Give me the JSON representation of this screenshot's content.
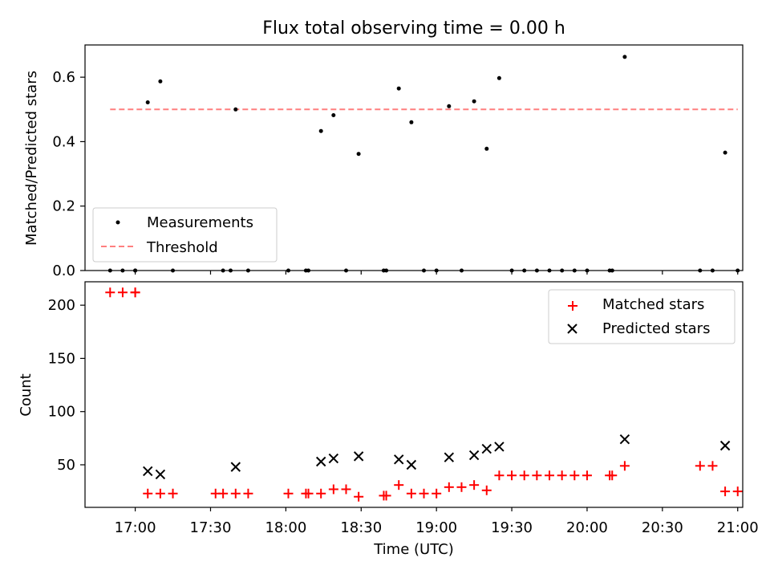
{
  "chart_data": [
    {
      "type": "scatter",
      "title": "Flux total observing time = 0.00 h",
      "ylabel": "Matched/Predicted stars",
      "xlabel": "",
      "xlim": [
        "16:40",
        "21:02"
      ],
      "ylim": [
        0,
        0.7
      ],
      "yticks": [
        0.0,
        0.2,
        0.4,
        0.6
      ],
      "ytick_labels": [
        "0.0",
        "0.2",
        "0.4",
        "0.6"
      ],
      "grid": false,
      "legend_position": "lower-left",
      "series": [
        {
          "name": "Measurements",
          "marker": "dot",
          "color": "#000000",
          "points": [
            [
              "16:50",
              0.0
            ],
            [
              "16:55",
              0.0
            ],
            [
              "16:60",
              0.0
            ],
            [
              "17:00",
              0.0
            ],
            [
              "17:05",
              0.522
            ],
            [
              "17:10",
              0.587
            ],
            [
              "17:15",
              0.0
            ],
            [
              "17:35",
              0.0
            ],
            [
              "17:38",
              0.0
            ],
            [
              "17:40",
              0.5
            ],
            [
              "17:45",
              0.0
            ],
            [
              "18:01",
              0.0
            ],
            [
              "18:08",
              0.0
            ],
            [
              "18:09",
              0.0
            ],
            [
              "18:14",
              0.433
            ],
            [
              "18:19",
              0.482
            ],
            [
              "18:24",
              0.0
            ],
            [
              "18:29",
              0.362
            ],
            [
              "18:39",
              0.0
            ],
            [
              "18:40",
              0.0
            ],
            [
              "18:45",
              0.565
            ],
            [
              "18:50",
              0.46
            ],
            [
              "18:55",
              0.0
            ],
            [
              "19:00",
              0.0
            ],
            [
              "19:05",
              0.51
            ],
            [
              "19:10",
              0.0
            ],
            [
              "19:15",
              0.525
            ],
            [
              "19:20",
              0.378
            ],
            [
              "19:25",
              0.597
            ],
            [
              "19:30",
              0.0
            ],
            [
              "19:35",
              0.0
            ],
            [
              "19:40",
              0.0
            ],
            [
              "19:45",
              0.0
            ],
            [
              "19:50",
              0.0
            ],
            [
              "19:55",
              0.0
            ],
            [
              "20:00",
              0.0
            ],
            [
              "20:09",
              0.0
            ],
            [
              "20:10",
              0.0
            ],
            [
              "20:15",
              0.663
            ],
            [
              "20:45",
              0.0
            ],
            [
              "20:50",
              0.0
            ],
            [
              "20:55",
              0.366
            ],
            [
              "21:00",
              0.0
            ]
          ]
        },
        {
          "name": "Threshold",
          "marker": "dashed-line",
          "color": "#ff7f7f",
          "points": [
            [
              "16:50",
              0.5
            ],
            [
              "21:00",
              0.5
            ]
          ]
        }
      ]
    },
    {
      "type": "scatter",
      "title": "",
      "ylabel": "Count",
      "xlabel": "Time (UTC)",
      "xlim": [
        "16:40",
        "21:02"
      ],
      "ylim": [
        10,
        222
      ],
      "yticks": [
        50,
        100,
        150,
        200
      ],
      "ytick_labels": [
        "50",
        "100",
        "150",
        "200"
      ],
      "xticks": [
        "17:00",
        "17:30",
        "18:00",
        "18:30",
        "19:00",
        "19:30",
        "20:00",
        "20:30",
        "21:00"
      ],
      "xtick_labels": [
        "17:00",
        "17:30",
        "18:00",
        "18:30",
        "19:00",
        "19:30",
        "20:00",
        "20:30",
        "21:00"
      ],
      "grid": false,
      "legend_position": "upper-right",
      "series": [
        {
          "name": "Matched stars",
          "marker": "plus",
          "color": "#ff0000",
          "points": [
            [
              "16:50",
              212
            ],
            [
              "16:55",
              212
            ],
            [
              "16:60",
              212
            ],
            [
              "17:00",
              212
            ],
            [
              "17:05",
              23
            ],
            [
              "17:10",
              23
            ],
            [
              "17:15",
              23
            ],
            [
              "17:32",
              23
            ],
            [
              "17:35",
              23
            ],
            [
              "17:40",
              23
            ],
            [
              "17:45",
              23
            ],
            [
              "18:01",
              23
            ],
            [
              "18:08",
              23
            ],
            [
              "18:09",
              23
            ],
            [
              "18:14",
              23
            ],
            [
              "18:19",
              27
            ],
            [
              "18:24",
              27
            ],
            [
              "18:29",
              20
            ],
            [
              "18:39",
              21
            ],
            [
              "18:40",
              21
            ],
            [
              "18:45",
              31
            ],
            [
              "18:50",
              23
            ],
            [
              "18:55",
              23
            ],
            [
              "19:00",
              23
            ],
            [
              "19:05",
              29
            ],
            [
              "19:10",
              29
            ],
            [
              "19:15",
              31
            ],
            [
              "19:20",
              26
            ],
            [
              "19:25",
              40
            ],
            [
              "19:30",
              40
            ],
            [
              "19:35",
              40
            ],
            [
              "19:40",
              40
            ],
            [
              "19:45",
              40
            ],
            [
              "19:50",
              40
            ],
            [
              "19:55",
              40
            ],
            [
              "20:00",
              40
            ],
            [
              "20:09",
              40
            ],
            [
              "20:10",
              40
            ],
            [
              "20:15",
              49
            ],
            [
              "20:45",
              49
            ],
            [
              "20:50",
              49
            ],
            [
              "20:55",
              25
            ],
            [
              "21:00",
              25
            ]
          ]
        },
        {
          "name": "Predicted stars",
          "marker": "x",
          "color": "#000000",
          "points": [
            [
              "17:05",
              44
            ],
            [
              "17:10",
              41
            ],
            [
              "17:40",
              48
            ],
            [
              "18:14",
              53
            ],
            [
              "18:19",
              56
            ],
            [
              "18:29",
              58
            ],
            [
              "18:45",
              55
            ],
            [
              "18:50",
              50
            ],
            [
              "19:05",
              57
            ],
            [
              "19:15",
              59
            ],
            [
              "19:20",
              65
            ],
            [
              "19:25",
              67
            ],
            [
              "20:15",
              74
            ],
            [
              "20:55",
              68
            ]
          ]
        }
      ]
    }
  ]
}
